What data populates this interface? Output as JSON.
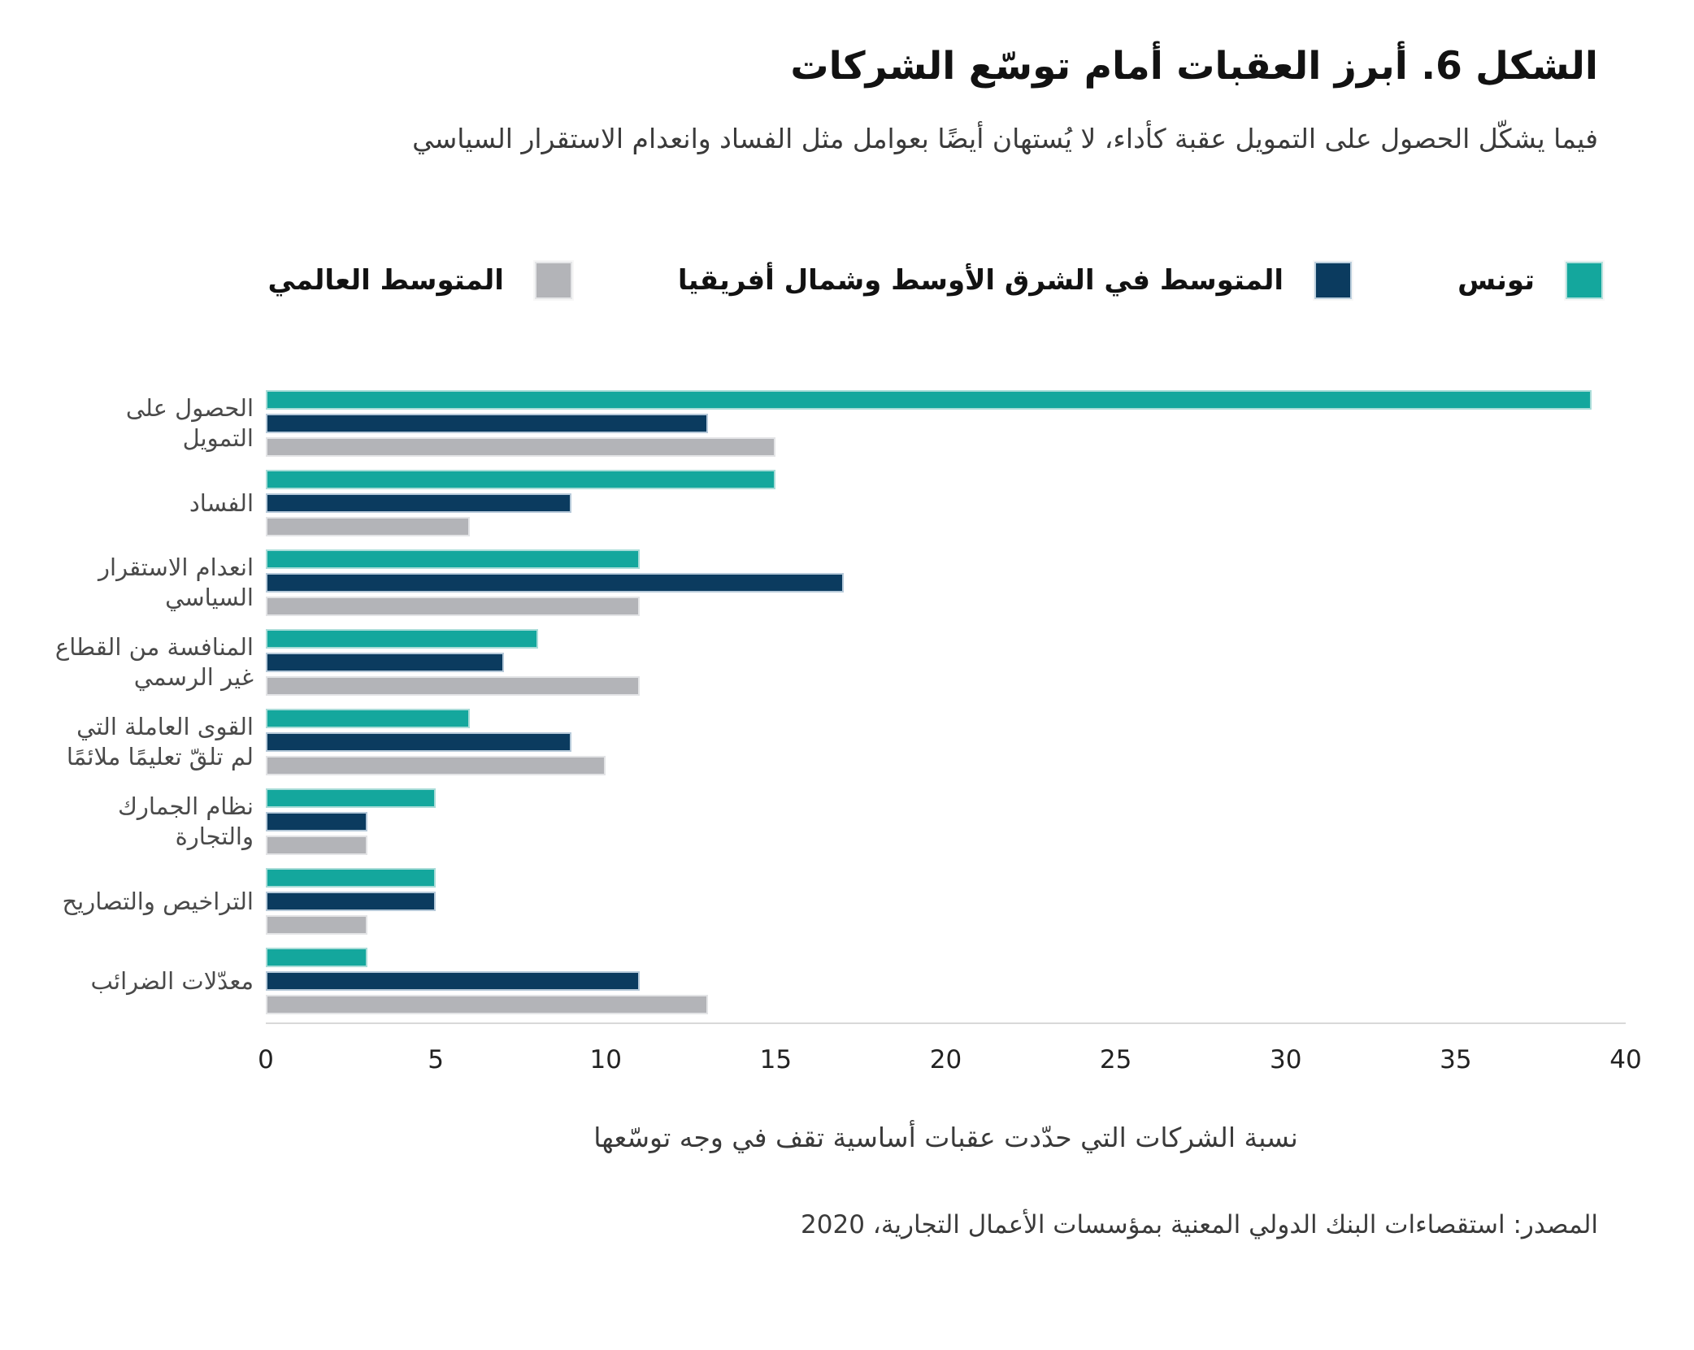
{
  "title": "الشكل 6. أبرز العقبات أمام توسّع الشركات",
  "subtitle": "فيما يشكّل الحصول على التمويل عقبة كأداء، لا يُستهان أيضًا بعوامل مثل الفساد وانعدام الاستقرار السياسي",
  "legend": [
    {
      "label": "تونس",
      "color": "#14a79d"
    },
    {
      "label": "المتوسط في الشرق الأوسط وشمال أفريقيا",
      "color": "#0b3b5f"
    },
    {
      "label": "المتوسط العالمي",
      "color": "#b3b4b8"
    }
  ],
  "chart_data": {
    "type": "bar",
    "orientation": "horizontal",
    "title": "الشكل 6. أبرز العقبات أمام توسّع الشركات",
    "subtitle": "فيما يشكّل الحصول على التمويل عقبة كأداء، لا يُستهان أيضًا بعوامل مثل الفساد وانعدام الاستقرار السياسي",
    "categories": [
      "الحصول على التمويل",
      "الفساد",
      "انعدام الاستقرار السياسي",
      "المنافسة من القطاع غير الرسمي",
      "القوى العاملة التي لم تلقّ تعليمًا ملائمًا",
      "نظام الجمارك والتجارة",
      "التراخيص والتصاريح",
      "معدّلات الضرائب"
    ],
    "series": [
      {
        "name": "تونس",
        "color": "#14a79d",
        "values": [
          39,
          15,
          11,
          8,
          6,
          5,
          5,
          3
        ]
      },
      {
        "name": "المتوسط في الشرق الأوسط وشمال أفريقيا",
        "color": "#0b3b5f",
        "values": [
          13,
          9,
          17,
          7,
          9,
          3,
          5,
          11
        ]
      },
      {
        "name": "المتوسط العالمي",
        "color": "#b3b4b8",
        "values": [
          15,
          6,
          11,
          11,
          10,
          3,
          3,
          13
        ]
      }
    ],
    "xlabel": "نسبة الشركات التي حدّدت عقبات أساسية تقف في وجه توسّعها",
    "xlim": [
      0,
      40
    ],
    "xticks": [
      0,
      5,
      10,
      15,
      20,
      25,
      30,
      35,
      40
    ],
    "grid": false,
    "legend_position": "top"
  },
  "source": "المصدر: استقصاءات البنك الدولي المعنية بمؤسسات الأعمال التجارية، 2020"
}
